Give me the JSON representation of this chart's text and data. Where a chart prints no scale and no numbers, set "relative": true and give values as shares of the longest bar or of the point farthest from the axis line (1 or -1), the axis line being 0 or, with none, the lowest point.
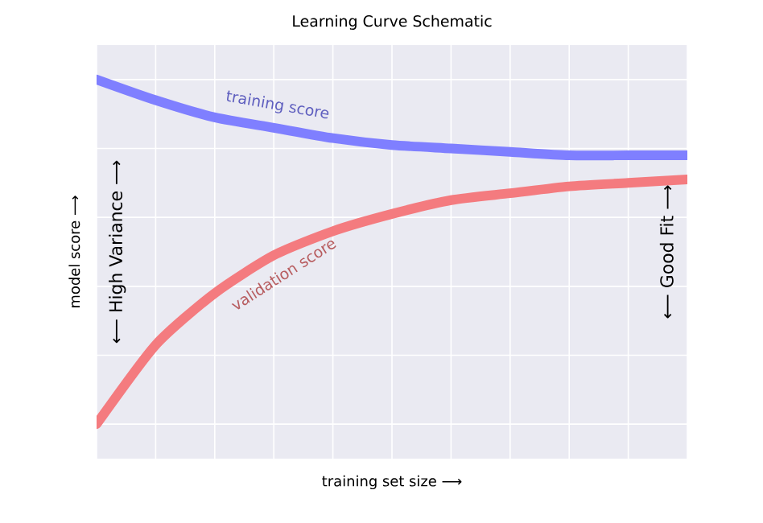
{
  "chart_data": {
    "type": "line",
    "title": "Learning Curve Schematic",
    "xlabel": "training set size ⟶",
    "ylabel": "model score ⟶",
    "relative": true,
    "grid": true,
    "categories": [
      null,
      null,
      null,
      null,
      null,
      null,
      null,
      null,
      null,
      null,
      null
    ],
    "series": [
      {
        "name": "training score",
        "color": "#7f7fff",
        "values": [
          1,
          0.94,
          0.89,
          0.86,
          0.83,
          0.81,
          0.8,
          0.79,
          0.78,
          0.78,
          0.78
        ]
      },
      {
        "name": "validation score",
        "color": "#f47b7f",
        "values": [
          0,
          0.23,
          0.38,
          0.49,
          0.56,
          0.61,
          0.65,
          0.67,
          0.69,
          0.7,
          0.71
        ]
      }
    ],
    "annotations": [
      "⟵ High Variance ⟶",
      "⟵ Good Fit ⟶"
    ]
  }
}
